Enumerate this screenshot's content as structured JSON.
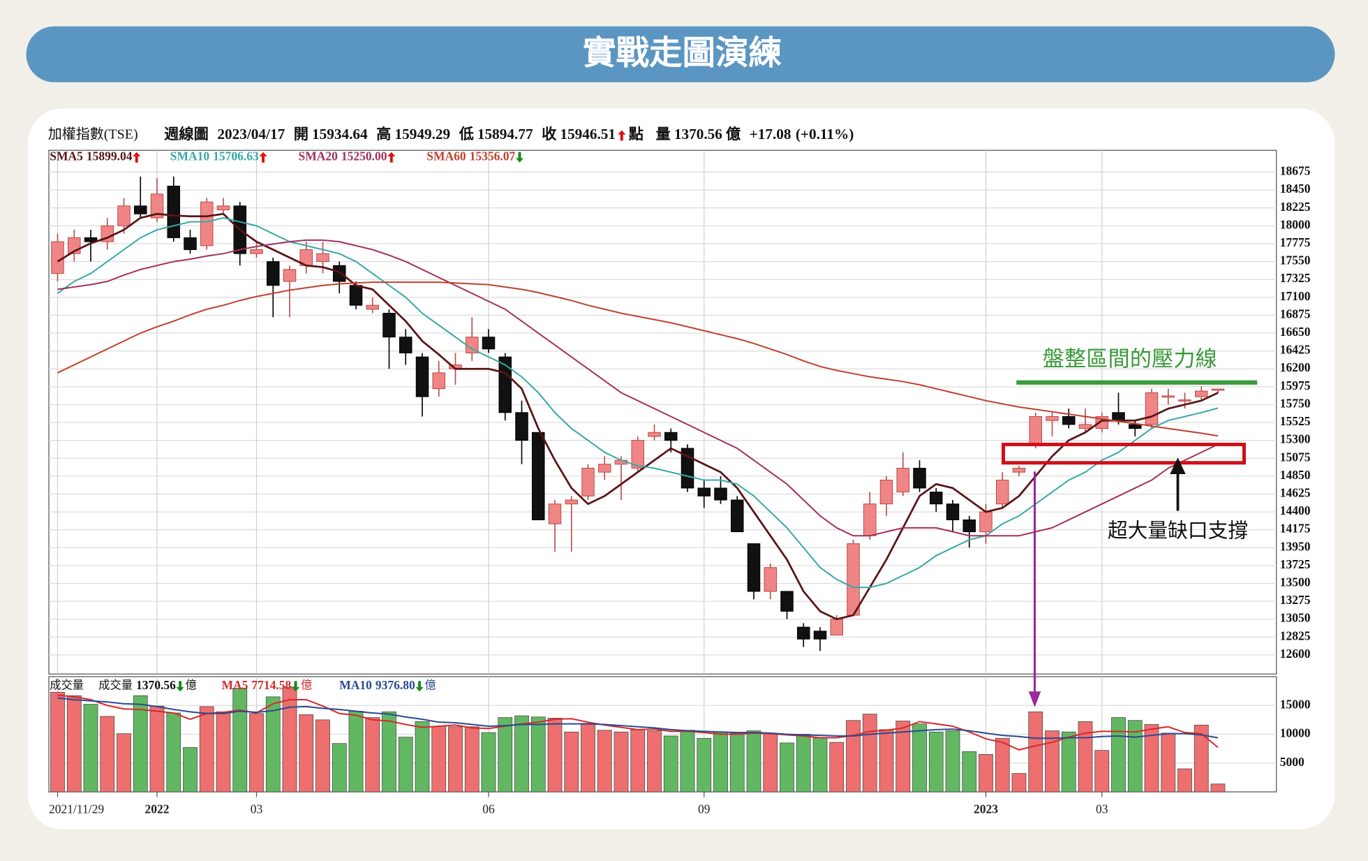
{
  "title": "實戰走圖演練",
  "header": {
    "index_name": "加權指數(TSE)",
    "period": "週線圖",
    "date": "2023/04/17",
    "open_label": "開",
    "high_label": "高",
    "low_label": "低",
    "close_label": "收",
    "unit": "點",
    "volume_label": "量",
    "change": "+17.08",
    "change_pct": "(+0.11%)"
  },
  "chart_data": [
    {
      "type": "candlestick",
      "categories": [
        "2021/11/29",
        null,
        null,
        null,
        null,
        null,
        "2022",
        null,
        null,
        null,
        null,
        null,
        "03",
        null,
        null,
        null,
        null,
        null,
        null,
        null,
        null,
        null,
        null,
        null,
        null,
        null,
        "06",
        null,
        null,
        null,
        null,
        null,
        null,
        null,
        null,
        null,
        null,
        null,
        null,
        "09",
        null,
        null,
        null,
        null,
        null,
        null,
        null,
        null,
        null,
        null,
        null,
        null,
        null,
        null,
        null,
        null,
        "2023",
        null,
        null,
        null,
        null,
        null,
        null,
        "03",
        null,
        null,
        null,
        null,
        null,
        null,
        null
      ],
      "open": [
        17400,
        17650,
        17850,
        17800,
        18000,
        18250,
        18100,
        18500,
        17850,
        17750,
        18200,
        18250,
        17650,
        17550,
        17300,
        17500,
        17550,
        17500,
        17250,
        16950,
        16900,
        16600,
        16350,
        15950,
        16200,
        16400,
        16600,
        16350,
        15650,
        15400,
        14250,
        14500,
        14600,
        14900,
        15000,
        14950,
        15350,
        15400,
        15200,
        14700,
        14700,
        14550,
        14000,
        13400,
        13400,
        12950,
        12900,
        12850,
        13100,
        14100,
        14500,
        14650,
        14950,
        14650,
        14500,
        14300,
        14150,
        14500,
        14900,
        15250,
        15550,
        15600,
        15450,
        15450,
        15650,
        15500,
        15500,
        15850,
        15800,
        15850,
        15934.64
      ],
      "high": [
        17900,
        17950,
        17950,
        18100,
        18350,
        18620,
        18600,
        18620,
        17950,
        18350,
        18350,
        18300,
        17800,
        17600,
        17500,
        17800,
        17800,
        17550,
        17300,
        17100,
        16950,
        16700,
        16400,
        16300,
        16400,
        16850,
        16700,
        16400,
        15800,
        15400,
        14550,
        14600,
        15000,
        15100,
        15100,
        15350,
        15500,
        15450,
        15250,
        14800,
        14850,
        14600,
        14000,
        13750,
        13400,
        13000,
        12950,
        13100,
        14050,
        14650,
        14850,
        15150,
        15050,
        14700,
        14550,
        14350,
        14500,
        14900,
        14980,
        15650,
        15650,
        15700,
        15700,
        15650,
        15900,
        15550,
        15950,
        15950,
        15900,
        15980,
        15949.29
      ],
      "low": [
        17300,
        17550,
        17550,
        17700,
        17900,
        18100,
        18050,
        17800,
        17650,
        17700,
        18150,
        17500,
        17600,
        16850,
        16850,
        17400,
        17400,
        17150,
        16950,
        16900,
        16200,
        16250,
        15600,
        15850,
        16000,
        16300,
        16400,
        15550,
        15000,
        14300,
        13900,
        13900,
        14550,
        14800,
        14550,
        14900,
        15300,
        15150,
        14650,
        14450,
        14500,
        14150,
        13300,
        13300,
        13050,
        12700,
        12650,
        12850,
        13100,
        14050,
        14350,
        14600,
        14650,
        14400,
        14150,
        13950,
        14000,
        14450,
        14850,
        15200,
        15350,
        15450,
        15400,
        15400,
        15500,
        15350,
        15450,
        15750,
        15700,
        15800,
        15894.77
      ],
      "close": [
        17800,
        17850,
        17800,
        18000,
        18250,
        18150,
        18400,
        17850,
        17700,
        18300,
        18250,
        17650,
        17700,
        17250,
        17450,
        17700,
        17650,
        17300,
        17000,
        17000,
        16600,
        16400,
        15850,
        16150,
        16250,
        16600,
        16450,
        15650,
        15300,
        14300,
        14500,
        14550,
        14950,
        15000,
        15050,
        15300,
        15400,
        15300,
        14700,
        14600,
        14550,
        14150,
        13400,
        13700,
        13150,
        12800,
        12800,
        13050,
        14000,
        14500,
        14800,
        14950,
        14700,
        14500,
        14300,
        14150,
        14400,
        14800,
        14950,
        15600,
        15600,
        15500,
        15500,
        15600,
        15550,
        15450,
        15900,
        15860,
        15810,
        15920,
        15946.51
      ],
      "up_color": "#f08585",
      "down_color": "#111111",
      "lines": [
        {
          "name": "SMA5",
          "color": "#5a1414",
          "trend": "up",
          "values": [
            17550,
            17680,
            17780,
            17850,
            17950,
            18100,
            18150,
            18130,
            18120,
            18120,
            18150,
            17950,
            17800,
            17700,
            17600,
            17500,
            17480,
            17420,
            17250,
            17200,
            17000,
            16800,
            16550,
            16380,
            16200,
            16200,
            16200,
            16150,
            15950,
            15450,
            15050,
            14700,
            14500,
            14600,
            14750,
            14900,
            15050,
            15200,
            15100,
            15000,
            14900,
            14700,
            14400,
            14100,
            13800,
            13400,
            13150,
            13050,
            13100,
            13450,
            13800,
            14200,
            14600,
            14750,
            14700,
            14550,
            14400,
            14450,
            14600,
            14850,
            15100,
            15300,
            15400,
            15550,
            15550,
            15550,
            15600,
            15700,
            15750,
            15800,
            15899.04
          ]
        },
        {
          "name": "SMA10",
          "color": "#37a8a8",
          "trend": "up",
          "values": [
            17150,
            17300,
            17400,
            17550,
            17700,
            17850,
            17950,
            18000,
            18050,
            18050,
            18100,
            18050,
            18000,
            17900,
            17800,
            17750,
            17700,
            17650,
            17550,
            17400,
            17250,
            17100,
            16900,
            16750,
            16600,
            16450,
            16350,
            16250,
            16100,
            15900,
            15650,
            15450,
            15300,
            15150,
            15050,
            14980,
            14950,
            14900,
            14850,
            14800,
            14800,
            14750,
            14600,
            14400,
            14200,
            13950,
            13700,
            13550,
            13450,
            13450,
            13500,
            13600,
            13700,
            13850,
            13950,
            14050,
            14100,
            14250,
            14350,
            14500,
            14650,
            14800,
            14900,
            15050,
            15150,
            15300,
            15450,
            15550,
            15600,
            15650,
            15706.63
          ]
        },
        {
          "name": "SMA20",
          "color": "#a3305e",
          "trend": "up",
          "values": [
            17200,
            17230,
            17260,
            17300,
            17380,
            17450,
            17500,
            17550,
            17580,
            17620,
            17650,
            17700,
            17740,
            17770,
            17800,
            17820,
            17820,
            17800,
            17750,
            17700,
            17630,
            17550,
            17450,
            17350,
            17250,
            17150,
            17050,
            16950,
            16800,
            16650,
            16500,
            16350,
            16200,
            16050,
            15900,
            15800,
            15700,
            15600,
            15500,
            15400,
            15300,
            15200,
            15050,
            14900,
            14750,
            14550,
            14350,
            14200,
            14100,
            14100,
            14150,
            14200,
            14200,
            14200,
            14150,
            14100,
            14100,
            14100,
            14100,
            14150,
            14200,
            14300,
            14400,
            14500,
            14600,
            14700,
            14800,
            14950,
            15050,
            15150,
            15250
          ],
          "value_labels": [
            null,
            null,
            null,
            null,
            null,
            null,
            null,
            null,
            null,
            null,
            null,
            null,
            null,
            null,
            null,
            null,
            null,
            null,
            null,
            null,
            null,
            null,
            null,
            null,
            null,
            null,
            null,
            null,
            null,
            null,
            null,
            null,
            null,
            null,
            null,
            null,
            null,
            null,
            null,
            null,
            null,
            null,
            null,
            null,
            null,
            null,
            null,
            null,
            null,
            null,
            null,
            null,
            null,
            null,
            null,
            null,
            null,
            null,
            null,
            null,
            null,
            null,
            null,
            null,
            null,
            null,
            null,
            null,
            null,
            null,
            "15250.00"
          ]
        },
        {
          "name": "SMA60",
          "color": "#c0402e",
          "trend": "down",
          "values": [
            16150,
            16250,
            16350,
            16450,
            16550,
            16650,
            16730,
            16800,
            16880,
            16950,
            17000,
            17060,
            17110,
            17150,
            17190,
            17220,
            17250,
            17270,
            17280,
            17290,
            17290,
            17290,
            17290,
            17290,
            17280,
            17270,
            17260,
            17230,
            17200,
            17160,
            17110,
            17060,
            17000,
            16950,
            16900,
            16860,
            16820,
            16780,
            16730,
            16680,
            16630,
            16580,
            16520,
            16450,
            16380,
            16300,
            16230,
            16180,
            16140,
            16100,
            16070,
            16040,
            16000,
            15950,
            15900,
            15850,
            15800,
            15760,
            15720,
            15690,
            15660,
            15630,
            15600,
            15570,
            15540,
            15510,
            15480,
            15450,
            15420,
            15390,
            15356.07
          ]
        }
      ],
      "ylim": [
        12360,
        18950
      ],
      "yticks": [
        12600,
        12825,
        13050,
        13275,
        13500,
        13725,
        13950,
        14175,
        14400,
        14625,
        14850,
        15075,
        15300,
        15525,
        15750,
        15975,
        16200,
        16425,
        16650,
        16875,
        17100,
        17325,
        17550,
        17775,
        18000,
        18225,
        18450,
        18675
      ]
    },
    {
      "type": "bar",
      "title": "成交量",
      "name": "成交量",
      "unit": "億",
      "trend": "down",
      "values": [
        17300,
        16700,
        15200,
        13100,
        10100,
        16700,
        14900,
        13700,
        7700,
        14800,
        13900,
        18000,
        13600,
        16500,
        18200,
        13400,
        12500,
        8400,
        14000,
        12900,
        13900,
        9500,
        12200,
        11400,
        11300,
        11300,
        10300,
        12900,
        13200,
        13000,
        12800,
        10400,
        11900,
        10700,
        10400,
        10800,
        10600,
        9700,
        10700,
        9300,
        10400,
        10200,
        10600,
        10200,
        8500,
        10000,
        9400,
        8600,
        12400,
        13500,
        10800,
        12300,
        11800,
        10400,
        10600,
        7000,
        6500,
        9300,
        3200,
        13900,
        10600,
        10400,
        12200,
        7200,
        12900,
        12400,
        11700,
        10200,
        4000,
        11600,
        1370.56
      ],
      "up_color": "#ee6f6f",
      "down_color": "#62b862",
      "lines": [
        {
          "name": "MA5",
          "color": "#d42a2a",
          "trend": "down",
          "values": [
            16800,
            16500,
            16000,
            15000,
            14400,
            14300,
            14000,
            13700,
            12600,
            13600,
            13800,
            14200,
            13700,
            15300,
            16000,
            16000,
            14900,
            13600,
            13300,
            12500,
            12300,
            11700,
            11200,
            11400,
            11600,
            11100,
            11000,
            11400,
            11800,
            12100,
            12600,
            12700,
            12100,
            11600,
            11200,
            10800,
            10900,
            10500,
            10500,
            10300,
            10000,
            10000,
            10200,
            10100,
            9900,
            9700,
            9400,
            9400,
            9800,
            10500,
            10700,
            11100,
            12200,
            11800,
            11400,
            10400,
            9200,
            8600,
            7300,
            8000,
            8600,
            9500,
            10200,
            10500,
            10500,
            10400,
            10900,
            11300,
            10300,
            10100,
            7714.58
          ]
        },
        {
          "name": "MA10",
          "color": "#2a4a90",
          "trend": "down",
          "values": [
            16300,
            16000,
            15800,
            15600,
            15300,
            15200,
            14800,
            14300,
            13900,
            13600,
            13600,
            14000,
            13800,
            14100,
            14700,
            14800,
            14500,
            14300,
            14000,
            13700,
            13500,
            13000,
            12600,
            12100,
            12000,
            11700,
            11400,
            11500,
            11700,
            11700,
            11800,
            11800,
            11800,
            11700,
            11500,
            11300,
            11100,
            10800,
            10600,
            10500,
            10400,
            10300,
            10300,
            10200,
            10000,
            9900,
            9800,
            9700,
            9700,
            10000,
            10200,
            10400,
            10600,
            10800,
            10900,
            10600,
            10200,
            9800,
            9600,
            9300,
            9300,
            9400,
            9400,
            9600,
            9700,
            9500,
            9800,
            10100,
            10100,
            9900,
            9376.8
          ],
          "value_labels": [
            null,
            null,
            null,
            null,
            null,
            null,
            null,
            null,
            null,
            null,
            null,
            null,
            null,
            null,
            null,
            null,
            null,
            null,
            null,
            null,
            null,
            null,
            null,
            null,
            null,
            null,
            null,
            null,
            null,
            null,
            null,
            null,
            null,
            null,
            null,
            null,
            null,
            null,
            null,
            null,
            null,
            null,
            null,
            null,
            null,
            null,
            null,
            null,
            null,
            null,
            null,
            null,
            null,
            null,
            null,
            null,
            null,
            null,
            null,
            null,
            null,
            null,
            null,
            null,
            null,
            null,
            null,
            null,
            null,
            null,
            "9376.80"
          ]
        }
      ],
      "ylim": [
        0,
        20000
      ],
      "yticks": [
        5000,
        10000,
        15000
      ]
    }
  ],
  "annotations": [
    "盤整區間的壓力線",
    "超大量缺口支撐"
  ]
}
